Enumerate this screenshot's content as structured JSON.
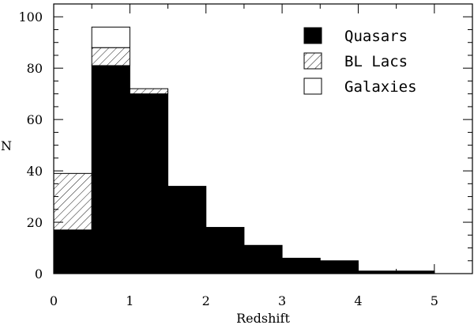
{
  "chart_data": {
    "type": "bar",
    "stacked": true,
    "bin_edges": [
      0,
      0.5,
      1,
      1.5,
      2,
      2.5,
      3,
      3.5,
      4,
      4.5,
      5,
      5.5
    ],
    "xlabel": "Redshift",
    "ylabel": "N",
    "xlim": [
      0,
      5.5
    ],
    "ylim": [
      0,
      105
    ],
    "xticks": [
      0,
      1,
      2,
      3,
      4,
      5
    ],
    "yticks": [
      0,
      20,
      40,
      60,
      80,
      100
    ],
    "grid": false,
    "legend_position": "top-right",
    "series": [
      {
        "name": "Quasars",
        "fill": "solid",
        "values": [
          17,
          81,
          70,
          34,
          18,
          11,
          6,
          5,
          1,
          1,
          0
        ]
      },
      {
        "name": "BL Lacs",
        "fill": "hatched",
        "values": [
          22,
          7,
          2,
          0,
          0,
          0,
          0,
          0,
          0,
          0,
          0
        ]
      },
      {
        "name": "Galaxies",
        "fill": "open",
        "values": [
          0,
          8,
          0,
          0,
          0,
          0,
          0,
          0,
          0,
          0,
          0
        ]
      }
    ]
  }
}
